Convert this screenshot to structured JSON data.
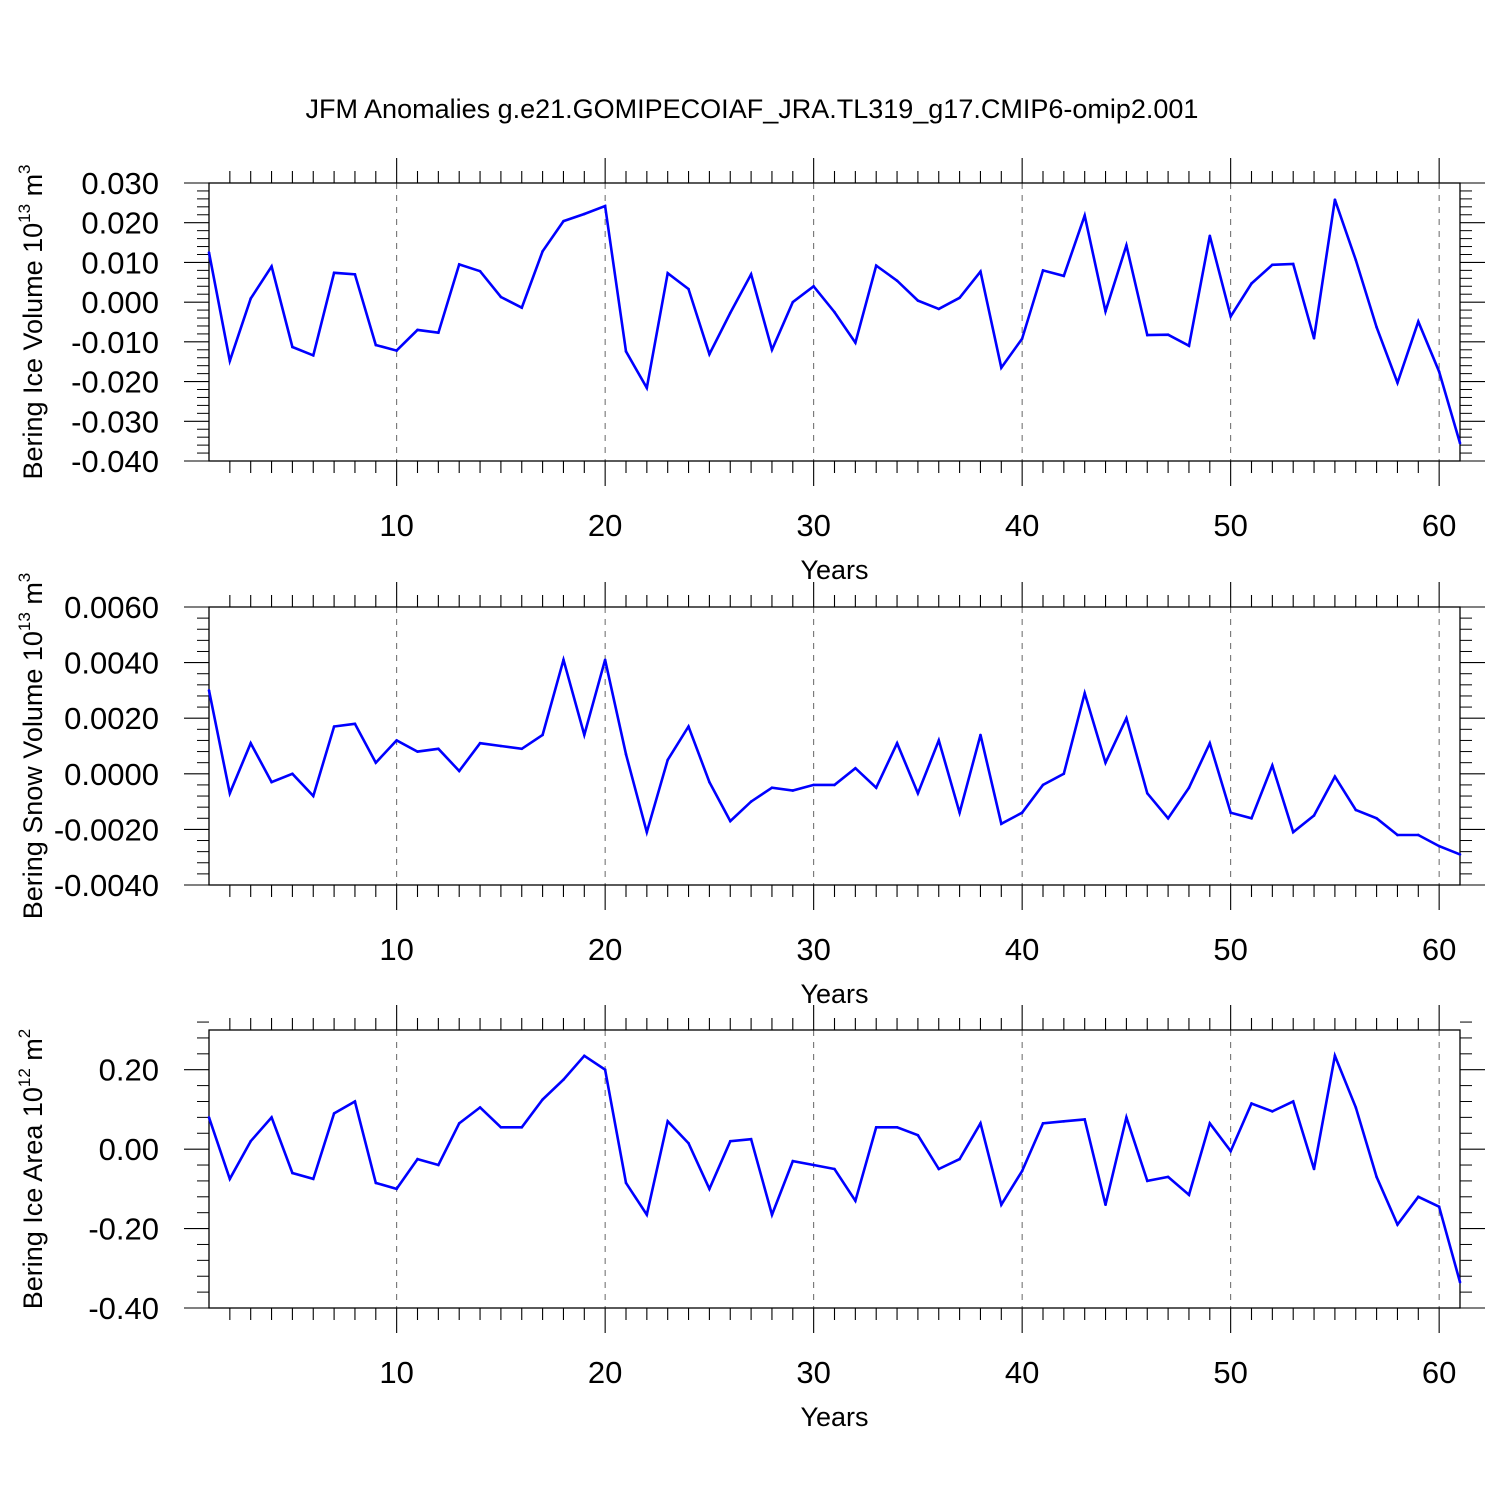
{
  "title": "JFM Anomalies g.e21.GOMIPECOIAF_JRA.TL319_g17.CMIP6-omip2.001",
  "line_color": "#0000ff",
  "chart_data": [
    {
      "type": "line",
      "ylabel": {
        "base": "Bering Ice Volume 10",
        "exp": "13",
        "unit": " m",
        "unit_exp": "3"
      },
      "xlabel": "Years",
      "xlim": [
        1,
        61
      ],
      "ylim": [
        -0.04,
        0.03
      ],
      "yticks": [
        -0.04,
        -0.03,
        -0.02,
        -0.01,
        0.0,
        0.01,
        0.02,
        0.03
      ],
      "ytick_labels": [
        "-0.040",
        "-0.030",
        "-0.020",
        "-0.010",
        "0.000",
        "0.010",
        "0.020",
        "0.030"
      ],
      "xticks": [
        10,
        20,
        30,
        40,
        50,
        60
      ],
      "xtick_labels": [
        "10",
        "20",
        "30",
        "40",
        "50",
        "60"
      ],
      "grid": "dashed vertical at x ticks",
      "values": [
        0.0125,
        -0.0148,
        0.0009,
        0.009,
        -0.0113,
        -0.0134,
        0.0074,
        0.007,
        -0.0108,
        -0.0122,
        -0.007,
        -0.0077,
        0.0095,
        0.0078,
        0.0013,
        -0.0014,
        0.0128,
        0.0204,
        0.0222,
        0.0242,
        -0.0124,
        -0.0216,
        0.0073,
        0.0033,
        -0.0131,
        -0.0027,
        0.007,
        -0.012,
        0.0,
        0.004,
        -0.0025,
        -0.0102,
        0.0092,
        0.0054,
        0.0004,
        -0.0017,
        0.0011,
        0.0077,
        -0.0165,
        -0.0092,
        0.008,
        0.0066,
        0.0218,
        -0.0023,
        0.0143,
        -0.0083,
        -0.0082,
        -0.011,
        0.0167,
        -0.0036,
        0.0047,
        0.0094,
        0.0096,
        -0.0091,
        0.0258,
        0.0106,
        -0.0063,
        -0.0203,
        -0.0049,
        -0.0175,
        -0.0355
      ]
    },
    {
      "type": "line",
      "ylabel": {
        "base": "Bering Snow Volume 10",
        "exp": "13",
        "unit": " m",
        "unit_exp": "3"
      },
      "xlabel": "Years",
      "xlim": [
        1,
        61
      ],
      "ylim": [
        -0.004,
        0.006
      ],
      "yticks": [
        -0.004,
        -0.002,
        0.0,
        0.002,
        0.004,
        0.006
      ],
      "ytick_labels": [
        "-0.0040",
        "-0.0020",
        "0.0000",
        "0.0020",
        "0.0040",
        "0.0060"
      ],
      "xticks": [
        10,
        20,
        30,
        40,
        50,
        60
      ],
      "xtick_labels": [
        "10",
        "20",
        "30",
        "40",
        "50",
        "60"
      ],
      "grid": "dashed vertical at x ticks",
      "values": [
        0.003,
        -0.0007,
        0.0011,
        -0.0003,
        0.0,
        -0.0008,
        0.0017,
        0.0018,
        0.0004,
        0.0012,
        0.0008,
        0.0009,
        0.0001,
        0.0011,
        0.001,
        0.0009,
        0.0014,
        0.0041,
        0.0014,
        0.0041,
        0.0007,
        -0.0021,
        0.0005,
        0.0017,
        -0.0003,
        -0.0017,
        -0.001,
        -0.0005,
        -0.0006,
        -0.0004,
        -0.0004,
        0.0002,
        -0.0005,
        0.0011,
        -0.0007,
        0.0012,
        -0.0014,
        0.0014,
        -0.0018,
        -0.0014,
        -0.0004,
        -0.0,
        0.0029,
        0.0004,
        0.002,
        -0.0007,
        -0.0016,
        -0.0005,
        0.0011,
        -0.0014,
        -0.0016,
        0.0003,
        -0.0021,
        -0.0015,
        -0.0001,
        -0.0013,
        -0.0016,
        -0.0022,
        -0.0022,
        -0.0026,
        -0.0029
      ]
    },
    {
      "type": "line",
      "ylabel": {
        "base": "Bering Ice Area 10",
        "exp": "12",
        "unit": " m",
        "unit_exp": "2"
      },
      "xlabel": "Years",
      "xlim": [
        1,
        61
      ],
      "ylim": [
        -0.4,
        0.3
      ],
      "yticks": [
        -0.4,
        -0.2,
        0.0,
        0.2
      ],
      "ytick_labels": [
        "-0.40",
        "-0.20",
        "0.00",
        "0.20"
      ],
      "xticks": [
        10,
        20,
        30,
        40,
        50,
        60
      ],
      "xtick_labels": [
        "10",
        "20",
        "30",
        "40",
        "50",
        "60"
      ],
      "grid": "dashed vertical at x ticks",
      "values": [
        0.08,
        -0.075,
        0.02,
        0.08,
        -0.06,
        -0.075,
        0.09,
        0.12,
        -0.085,
        -0.1,
        -0.025,
        -0.04,
        0.065,
        0.105,
        0.055,
        0.055,
        0.125,
        0.175,
        0.235,
        0.2,
        -0.085,
        -0.165,
        0.07,
        0.015,
        -0.1,
        0.02,
        0.025,
        -0.165,
        -0.03,
        -0.04,
        -0.05,
        -0.13,
        0.055,
        0.055,
        0.035,
        -0.05,
        -0.025,
        0.065,
        -0.14,
        -0.055,
        0.065,
        0.07,
        0.075,
        -0.14,
        0.08,
        -0.08,
        -0.07,
        -0.115,
        0.065,
        -0.005,
        0.115,
        0.095,
        0.12,
        -0.05,
        0.235,
        0.105,
        -0.07,
        -0.19,
        -0.12,
        -0.145,
        -0.335
      ]
    }
  ]
}
